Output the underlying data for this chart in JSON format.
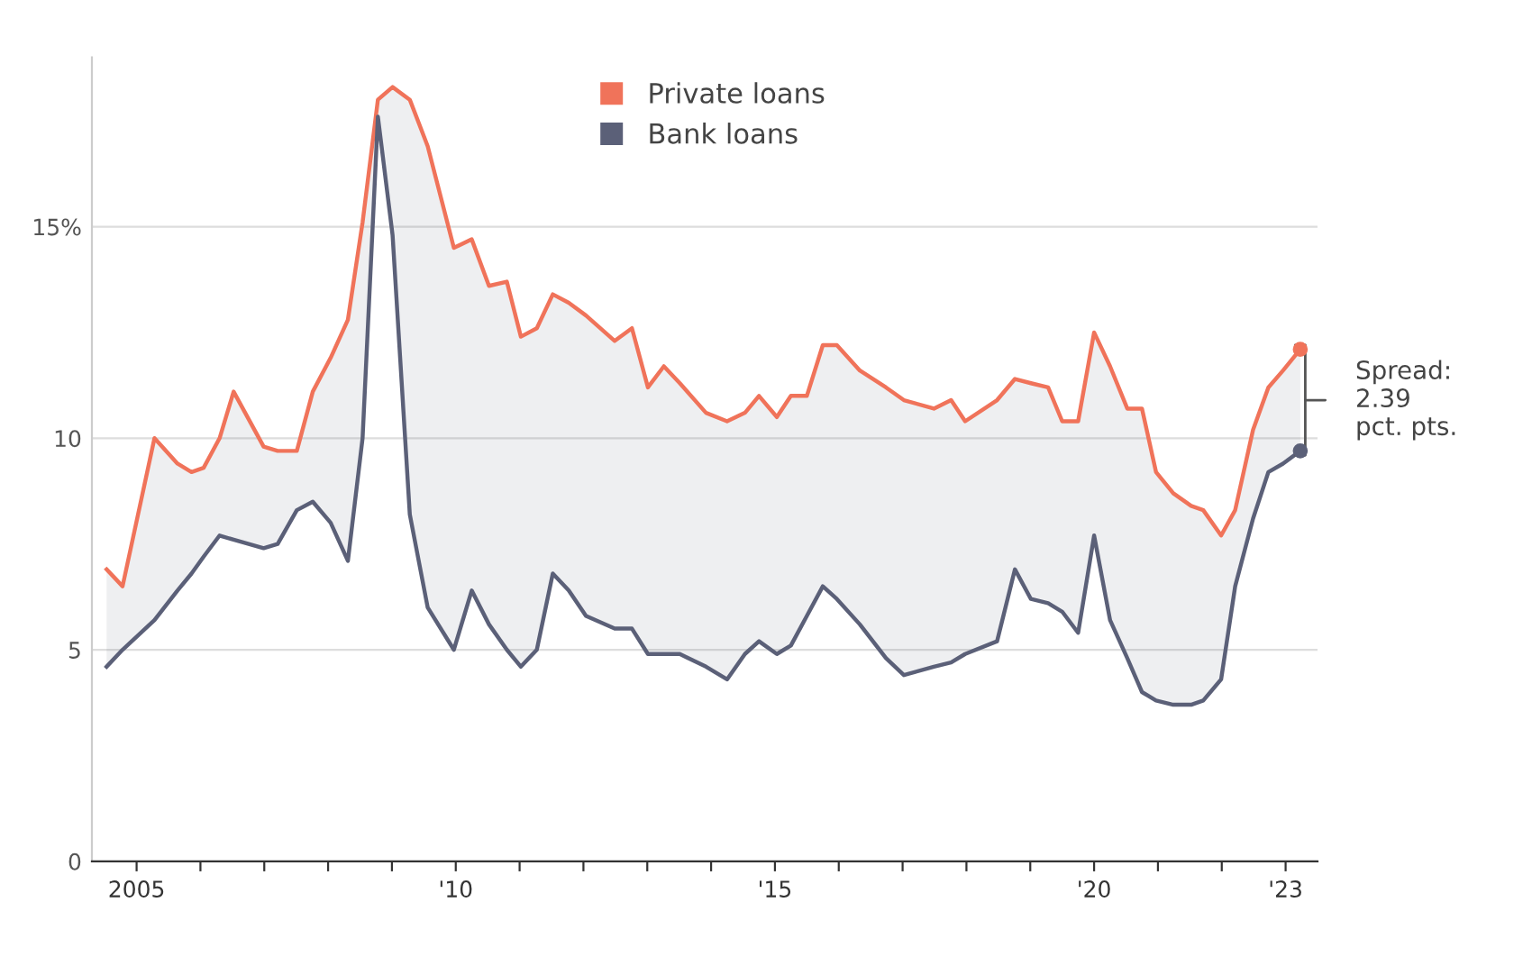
{
  "chart_data": {
    "type": "line",
    "xlim": [
      2004.3,
      2023.5
    ],
    "ylim": [
      0,
      19
    ],
    "xticks": [
      2005,
      {
        "value": 2006,
        "label": null
      },
      {
        "value": 2007,
        "label": null
      },
      {
        "value": 2008,
        "label": null
      },
      {
        "value": 2009,
        "label": null
      },
      {
        "value": 2010,
        "label": "'10"
      },
      {
        "value": 2011,
        "label": null
      },
      {
        "value": 2012,
        "label": null
      },
      {
        "value": 2013,
        "label": null
      },
      {
        "value": 2014,
        "label": null
      },
      {
        "value": 2015,
        "label": "'15"
      },
      {
        "value": 2016,
        "label": null
      },
      {
        "value": 2017,
        "label": null
      },
      {
        "value": 2018,
        "label": null
      },
      {
        "value": 2019,
        "label": null
      },
      {
        "value": 2020,
        "label": "'20"
      },
      {
        "value": 2021,
        "label": null
      },
      {
        "value": 2022,
        "label": null
      },
      {
        "value": 2023,
        "label": "'23"
      }
    ],
    "yticks": [
      0,
      5,
      10,
      {
        "value": 15,
        "label": "15%"
      }
    ],
    "grid": "y",
    "legend": "top",
    "marker": "none",
    "line_style": "solid",
    "x": [
      2004.53,
      2004.78,
      2005.28,
      2005.64,
      2005.86,
      2006.05,
      2006.3,
      2006.52,
      2006.99,
      2007.21,
      2007.51,
      2007.76,
      2008.04,
      2008.31,
      2008.54,
      2008.78,
      2009.01,
      2009.28,
      2009.56,
      2009.97,
      2010.25,
      2010.52,
      2010.8,
      2011.02,
      2011.27,
      2011.52,
      2011.77,
      2012.04,
      2012.49,
      2012.76,
      2013.01,
      2013.26,
      2013.51,
      2013.92,
      2014.25,
      2014.53,
      2014.75,
      2015.03,
      2015.25,
      2015.5,
      2015.75,
      2015.97,
      2016.33,
      2016.74,
      2017.02,
      2017.49,
      2017.76,
      2017.98,
      2018.48,
      2018.76,
      2019.01,
      2019.28,
      2019.5,
      2019.75,
      2020.0,
      2020.25,
      2020.52,
      2020.75,
      2020.97,
      2021.24,
      2021.52,
      2021.71,
      2021.99,
      2022.21,
      2022.49,
      2022.73,
      2022.96,
      2023.23
    ],
    "series": [
      {
        "name": "Private loans",
        "color": "#f0735a",
        "upper": [
          6.9,
          6.5,
          10.0,
          9.4,
          9.2,
          9.3,
          10.0,
          11.1,
          9.8,
          9.7,
          9.7,
          11.1,
          11.9,
          12.8,
          15.1,
          18.0,
          18.3,
          18.0,
          16.9,
          14.5,
          14.7,
          13.6,
          13.7,
          12.4,
          12.6,
          13.4,
          13.2,
          12.9,
          12.3,
          12.6,
          11.2,
          11.7,
          11.3,
          10.6,
          10.4,
          10.6,
          11.0,
          10.5,
          11.0,
          11.0,
          12.2,
          12.2,
          11.6,
          11.2,
          10.9,
          10.7,
          10.9,
          10.4,
          10.9,
          11.4,
          11.3,
          11.2,
          10.4,
          10.4,
          12.5,
          11.7,
          10.7,
          10.7,
          9.2,
          8.7,
          8.4,
          8.3,
          7.7,
          8.3,
          10.2,
          11.2,
          11.6,
          12.1
        ],
        "lower": [
          4.6,
          5.0,
          5.7,
          6.4,
          6.8,
          7.2,
          7.7,
          7.6,
          7.4,
          7.5,
          8.3,
          8.5,
          8.0,
          7.1,
          10.0,
          17.6,
          14.8,
          8.2,
          6.0,
          5.0,
          6.4,
          5.6,
          5.0,
          4.6,
          5.0,
          6.8,
          6.4,
          5.8,
          5.5,
          5.5,
          4.9,
          4.9,
          4.9,
          4.6,
          4.3,
          4.9,
          5.2,
          4.9,
          5.1,
          5.8,
          6.5,
          6.2,
          5.6,
          4.8,
          4.4,
          4.6,
          4.7,
          4.9,
          5.2,
          6.9,
          6.2,
          6.1,
          5.9,
          5.4,
          7.7,
          5.7,
          4.8,
          4.0,
          3.8,
          3.7,
          3.7,
          3.8,
          4.3,
          6.5,
          8.1,
          9.2,
          9.4,
          9.7
        ],
        "values": [
          6.9,
          6.5,
          10.0,
          9.4,
          9.2,
          9.3,
          10.0,
          11.1,
          9.8,
          9.7,
          9.7,
          11.1,
          11.9,
          12.8,
          15.1,
          18.0,
          18.3,
          18.0,
          16.9,
          14.5,
          14.7,
          13.6,
          13.7,
          12.4,
          12.6,
          13.4,
          13.2,
          12.9,
          12.3,
          12.6,
          11.2,
          11.7,
          11.3,
          10.6,
          10.4,
          10.6,
          11.0,
          10.5,
          11.0,
          11.0,
          12.2,
          12.2,
          11.6,
          11.2,
          10.9,
          10.7,
          10.9,
          10.4,
          10.9,
          11.4,
          11.3,
          11.2,
          10.4,
          10.4,
          12.5,
          11.7,
          10.7,
          10.7,
          9.2,
          8.7,
          8.4,
          8.3,
          7.7,
          8.3,
          10.2,
          11.2,
          11.6,
          12.1
        ]
      },
      {
        "name": "Bank loans",
        "color": "#5b6078",
        "values": [
          4.6,
          5.0,
          5.7,
          6.4,
          6.8,
          7.2,
          7.7,
          7.6,
          7.4,
          7.5,
          8.3,
          8.5,
          8.0,
          7.1,
          10.0,
          17.6,
          14.8,
          8.2,
          6.0,
          5.0,
          6.4,
          5.6,
          5.0,
          4.6,
          5.0,
          6.8,
          6.4,
          5.8,
          5.5,
          5.5,
          4.9,
          4.9,
          4.9,
          4.6,
          4.3,
          4.9,
          5.2,
          4.9,
          5.1,
          5.8,
          6.5,
          6.2,
          5.6,
          4.8,
          4.4,
          4.6,
          4.7,
          4.9,
          5.2,
          6.9,
          6.2,
          6.1,
          5.9,
          5.4,
          7.7,
          5.7,
          4.8,
          4.0,
          3.8,
          3.7,
          3.7,
          3.8,
          4.3,
          6.5,
          8.1,
          9.2,
          9.4,
          9.7
        ]
      }
    ],
    "annotations": [
      "Spread:\n2.39\npct. pts."
    ]
  }
}
